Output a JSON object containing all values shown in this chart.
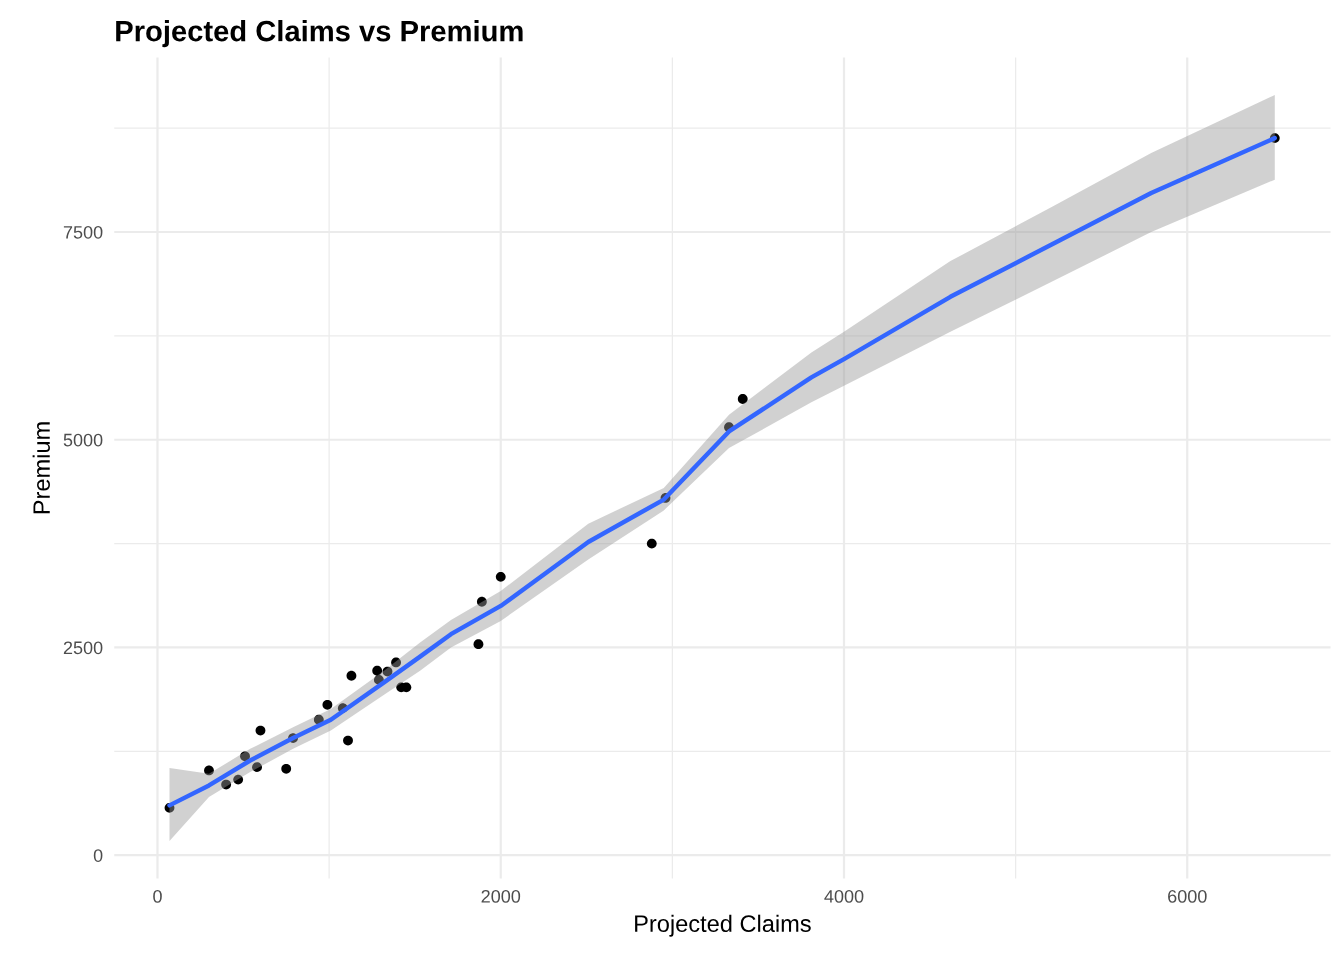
{
  "chart_data": {
    "type": "scatter",
    "title": "Projected Claims vs Premium",
    "xlabel": "Projected Claims",
    "ylabel": "Premium",
    "xlim": [
      -252,
      6835
    ],
    "ylim": [
      -279,
      9599
    ],
    "xticks": [
      0,
      {
        "value": 1000,
        "label": null
      },
      2000,
      {
        "value": 3000,
        "label": null
      },
      4000,
      {
        "value": 5000,
        "label": null
      },
      6000
    ],
    "yticks": [
      0,
      {
        "value": 1250,
        "label": null
      },
      2500,
      {
        "value": 3750,
        "label": null
      },
      5000,
      {
        "value": 6250,
        "label": null
      },
      7500,
      {
        "value": 8750,
        "label": null
      }
    ],
    "grid": true,
    "legend": false,
    "series": [
      {
        "color": "#000000",
        "marker": "circle",
        "x": [
          70,
          300,
          400,
          470,
          510,
          580,
          600,
          750,
          790,
          940,
          990,
          1080,
          1110,
          1130,
          1280,
          1290,
          1340,
          1390,
          1420,
          1450,
          1870,
          1890,
          2000,
          2880,
          2960,
          3330,
          3410,
          6510
        ],
        "values": [
          570,
          1020,
          850,
          910,
          1190,
          1060,
          1500,
          1040,
          1410,
          1630,
          1810,
          1770,
          1380,
          2160,
          2220,
          2110,
          2210,
          2320,
          2020,
          2020,
          2540,
          3050,
          3350,
          3750,
          4300,
          5150,
          5490,
          8630
        ]
      },
      {
        "type": "line",
        "color": "#3366ff",
        "marker": "none",
        "line_style": "solid",
        "x": [
          70,
          300,
          540,
          790,
          1010,
          1320,
          1530,
          1710,
          2000,
          2510,
          2950,
          3330,
          3810,
          4000,
          4620,
          5210,
          5790,
          6510
        ],
        "values": [
          600,
          840,
          1140,
          1410,
          1630,
          2080,
          2390,
          2660,
          3000,
          3770,
          4280,
          5100,
          5750,
          5970,
          6720,
          7350,
          7970,
          8630
        ],
        "lower": [
          170,
          700,
          1000,
          1280,
          1500,
          1930,
          2220,
          2500,
          2820,
          3560,
          4150,
          4900,
          5450,
          5650,
          6300,
          6900,
          7500,
          8130
        ],
        "upper": [
          1050,
          980,
          1280,
          1540,
          1760,
          2220,
          2560,
          2830,
          3180,
          3990,
          4420,
          5300,
          6050,
          6300,
          7150,
          7800,
          8450,
          9150
        ]
      }
    ]
  }
}
